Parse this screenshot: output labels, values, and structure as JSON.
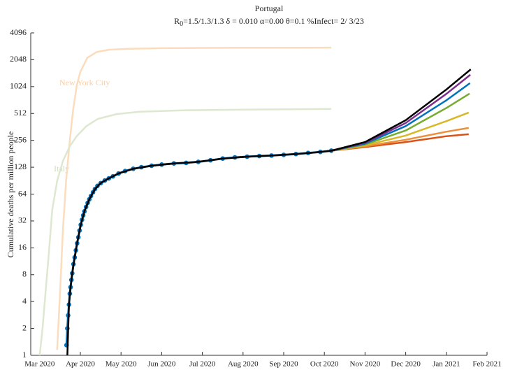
{
  "chart_data": {
    "type": "line",
    "title": "Portugal",
    "subtitle_parts": [
      "R",
      "0",
      "=1.5/1.3/1.3  δ = 0.010  α=0.00  θ=0.1  %Infect= 2/ 3/23"
    ],
    "ylabel": "Cumulative deaths per million people",
    "log_y": true,
    "log_base": 2,
    "xlim": [
      -0.22,
      11
    ],
    "ylim": [
      1,
      4096
    ],
    "xticks": [
      {
        "value": 0,
        "label": "Mar 2020"
      },
      {
        "value": 1,
        "label": "Apr 2020"
      },
      {
        "value": 2,
        "label": "May 2020"
      },
      {
        "value": 3,
        "label": "Jun 2020"
      },
      {
        "value": 4,
        "label": "Jul 2020"
      },
      {
        "value": 5,
        "label": "Aug 2020"
      },
      {
        "value": 6,
        "label": "Sep 2020"
      },
      {
        "value": 7,
        "label": "Oct 2020"
      },
      {
        "value": 8,
        "label": "Nov 2020"
      },
      {
        "value": 9,
        "label": "Dec 2020"
      },
      {
        "value": 10,
        "label": "Jan 2021"
      },
      {
        "value": 11,
        "label": "Feb 2021"
      }
    ],
    "yticks": [
      1,
      2,
      4,
      8,
      16,
      32,
      64,
      128,
      256,
      512,
      1024,
      2048,
      4096
    ],
    "series": [
      {
        "name": "New York City",
        "color": "#fbdcbd",
        "marker": "none",
        "x": [
          0.43,
          0.5,
          0.57,
          0.65,
          0.74,
          0.82,
          0.91,
          1.0,
          1.17,
          1.4,
          1.7,
          2.2,
          3,
          5,
          7.17
        ],
        "values": [
          1.15,
          5,
          25,
          90,
          256,
          550,
          1050,
          1500,
          2150,
          2500,
          2650,
          2720,
          2760,
          2790,
          2800
        ]
      },
      {
        "name": "Italy",
        "color": "#dde8d0",
        "marker": "none",
        "x": [
          0,
          0.07,
          0.14,
          0.22,
          0.31,
          0.43,
          0.57,
          0.74,
          0.91,
          1.15,
          1.43,
          1.9,
          2.46,
          3.5,
          5,
          7.17
        ],
        "values": [
          1,
          2,
          4.9,
          13,
          43,
          90,
          150,
          220,
          285,
          370,
          445,
          505,
          535,
          555,
          565,
          575
        ]
      },
      {
        "color": "#0072bd",
        "marker": "o",
        "x": [
          0.66,
          0.68,
          0.7,
          0.72,
          0.74,
          0.76,
          0.78,
          0.8,
          0.83,
          0.86,
          0.89,
          0.92,
          0.95,
          0.98,
          1.01,
          1.04,
          1.07,
          1.1,
          1.14,
          1.18,
          1.22,
          1.26,
          1.31,
          1.36,
          1.42,
          1.5,
          1.6,
          1.7,
          1.8,
          1.94,
          2.1,
          2.3,
          2.5,
          2.75,
          3.0,
          3.3,
          3.6,
          3.9,
          4.2,
          4.5,
          4.8,
          5.1,
          5.4,
          5.7,
          6.0,
          6.3,
          6.6,
          6.9,
          7.17
        ],
        "values": [
          1.3,
          2,
          2.8,
          3.7,
          4.9,
          5.8,
          7,
          8.3,
          10.5,
          12.5,
          15,
          18,
          21,
          25,
          29,
          33,
          37,
          41,
          46,
          51,
          56,
          61,
          67,
          73,
          79,
          85,
          91,
          96,
          101,
          109,
          116,
          123,
          128,
          133,
          137,
          141,
          143,
          147,
          153,
          160,
          165,
          168,
          171,
          173,
          176,
          180,
          185,
          190,
          196
        ]
      },
      {
        "color": "#d95319",
        "marker": "none",
        "x": [
          7.17,
          8,
          9,
          10,
          10.55
        ],
        "values": [
          196,
          215,
          245,
          285,
          300
        ]
      },
      {
        "color": "#ed8f3a",
        "marker": "none",
        "x": [
          7.17,
          8,
          9,
          10,
          10.55
        ],
        "values": [
          196,
          220,
          260,
          320,
          353
        ]
      },
      {
        "color": "#d8b825",
        "marker": "none",
        "x": [
          7.17,
          8,
          9,
          10,
          10.55
        ],
        "values": [
          196,
          225,
          290,
          420,
          525
        ]
      },
      {
        "color": "#77ac30",
        "marker": "none",
        "x": [
          7.17,
          8,
          9,
          10,
          10.57
        ],
        "values": [
          196,
          230,
          330,
          590,
          855
        ]
      },
      {
        "color": "#0072bd",
        "marker": "none",
        "x": [
          7.17,
          8,
          9,
          10,
          10.58
        ],
        "values": [
          196,
          235,
          370,
          720,
          1120
        ]
      },
      {
        "color": "#7e2f8e",
        "marker": "none",
        "x": [
          7.17,
          8,
          9,
          10,
          10.59
        ],
        "values": [
          196,
          240,
          400,
          850,
          1390
        ]
      },
      {
        "color": "#000000",
        "marker": "none",
        "x": [
          0.68,
          0.72,
          0.76,
          0.8,
          0.86,
          0.92,
          1.01,
          1.1,
          1.22,
          1.36,
          1.5,
          1.7,
          1.94,
          2.3,
          2.75,
          3.3,
          3.9,
          4.5,
          5.1,
          5.7,
          6.3,
          6.9,
          7.17,
          8,
          9,
          10,
          10.6
        ],
        "values": [
          1,
          3.7,
          5.8,
          8.3,
          12.5,
          18,
          29,
          41,
          56,
          73,
          85,
          96,
          109,
          123,
          133,
          141,
          147,
          160,
          168,
          173,
          180,
          190,
          196,
          245,
          430,
          950,
          1600
        ]
      }
    ]
  }
}
